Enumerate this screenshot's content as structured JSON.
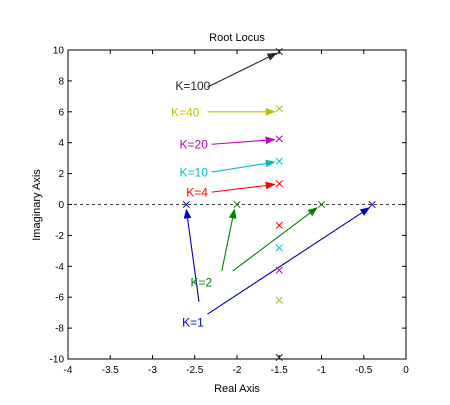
{
  "chart_data": {
    "type": "scatter",
    "title": "Root Locus",
    "xlabel": "Real Axis",
    "ylabel": "Imaginary Axis",
    "xlim": [
      -4,
      0
    ],
    "ylim": [
      -10,
      10
    ],
    "xticks": [
      -4,
      -3.5,
      -3,
      -2.5,
      -2,
      -1.5,
      -1,
      -0.5,
      0
    ],
    "yticks": [
      -10,
      -8,
      -6,
      -4,
      -2,
      0,
      2,
      4,
      6,
      8,
      10
    ],
    "xtick_labels": [
      "-4",
      "-3.5",
      "-3",
      "-2.5",
      "-2",
      "-1.5",
      "-1",
      "-0.5",
      "0"
    ],
    "ytick_labels": [
      "-10",
      "-8",
      "-6",
      "-4",
      "-2",
      "0",
      "2",
      "4",
      "6",
      "8",
      "10"
    ],
    "grid": false,
    "zero_line": "dashed",
    "series": [
      {
        "label": "K=100",
        "color": "#262626",
        "poles": [
          [
            -1.5,
            9.9
          ],
          [
            -1.5,
            -9.9
          ]
        ],
        "label_pos": [
          -2.73,
          7.7
        ],
        "arrow_from": [
          -2.35,
          7.6
        ],
        "arrow_to": [
          -1.53,
          9.8
        ]
      },
      {
        "label": "K=40",
        "color": "#bfbf00",
        "poles": [
          [
            -1.5,
            6.2
          ],
          [
            -1.5,
            -6.2
          ]
        ],
        "label_pos": [
          -2.78,
          6.0
        ],
        "arrow_from": [
          -2.35,
          6.0
        ],
        "arrow_to": [
          -1.55,
          6.0
        ]
      },
      {
        "label": "K=20",
        "color": "#bf00bf",
        "poles": [
          [
            -1.5,
            4.25
          ],
          [
            -1.5,
            -4.25
          ]
        ],
        "label_pos": [
          -2.68,
          3.9
        ],
        "arrow_from": [
          -2.3,
          3.9
        ],
        "arrow_to": [
          -1.55,
          4.2
        ]
      },
      {
        "label": "K=10",
        "color": "#00bfbf",
        "poles": [
          [
            -1.5,
            2.8
          ],
          [
            -1.5,
            -2.8
          ]
        ],
        "label_pos": [
          -2.68,
          2.1
        ],
        "arrow_from": [
          -2.3,
          2.1
        ],
        "arrow_to": [
          -1.55,
          2.75
        ]
      },
      {
        "label": "K=4",
        "color": "#ff0000",
        "poles": [
          [
            -1.5,
            1.35
          ],
          [
            -1.5,
            -1.35
          ]
        ],
        "label_pos": [
          -2.6,
          0.8
        ],
        "arrow_from": [
          -2.3,
          0.8
        ],
        "arrow_to": [
          -1.55,
          1.3
        ]
      },
      {
        "label": "K=2",
        "color": "#008000",
        "poles": [
          [
            -2.0,
            0
          ],
          [
            -1.0,
            0
          ]
        ],
        "label_pos": [
          -2.55,
          -5.0
        ],
        "arrow_from": [
          [
            -2.18,
            -4.3
          ],
          [
            -2.05,
            -4.3
          ]
        ],
        "arrow_to": [
          [
            -2.03,
            -0.3
          ],
          [
            -1.05,
            -0.2
          ]
        ]
      },
      {
        "label": "K=1",
        "color": "#0000bf",
        "poles": [
          [
            -2.6,
            0
          ],
          [
            -0.4,
            0
          ]
        ],
        "label_pos": [
          -2.65,
          -7.6
        ],
        "arrow_from": [
          [
            -2.45,
            -6.3
          ],
          [
            -2.35,
            -7.1
          ]
        ],
        "arrow_to": [
          [
            -2.6,
            -0.3
          ],
          [
            -0.43,
            -0.2
          ]
        ]
      }
    ]
  }
}
